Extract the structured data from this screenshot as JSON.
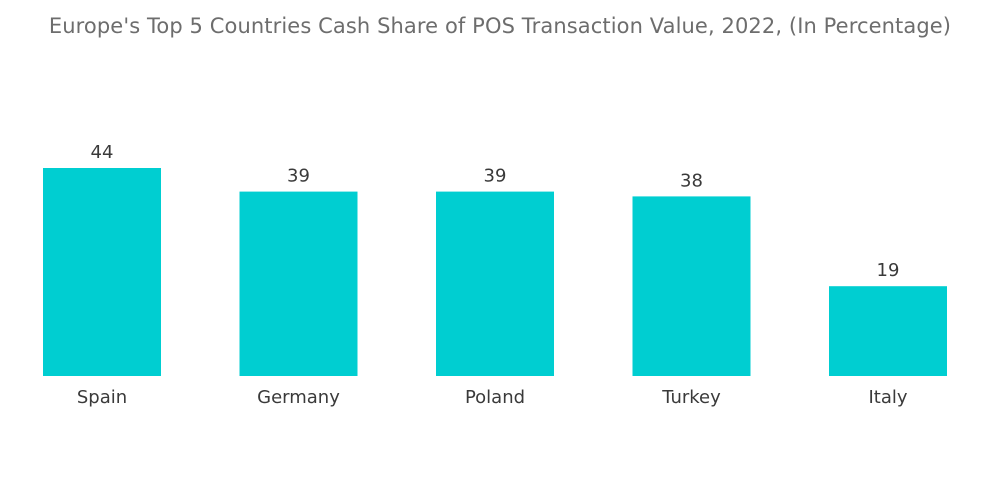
{
  "chart_data": {
    "type": "bar",
    "title": "Europe's Top 5 Countries Cash Share of POS Transaction Value, 2022, (In Percentage)",
    "categories": [
      "Spain",
      "Germany",
      "Poland",
      "Turkey",
      "Italy"
    ],
    "values": [
      44,
      39,
      39,
      38,
      19
    ],
    "ylim": [
      0,
      44
    ],
    "grid": false,
    "legend": "none",
    "bar_color": "#00ced1"
  }
}
